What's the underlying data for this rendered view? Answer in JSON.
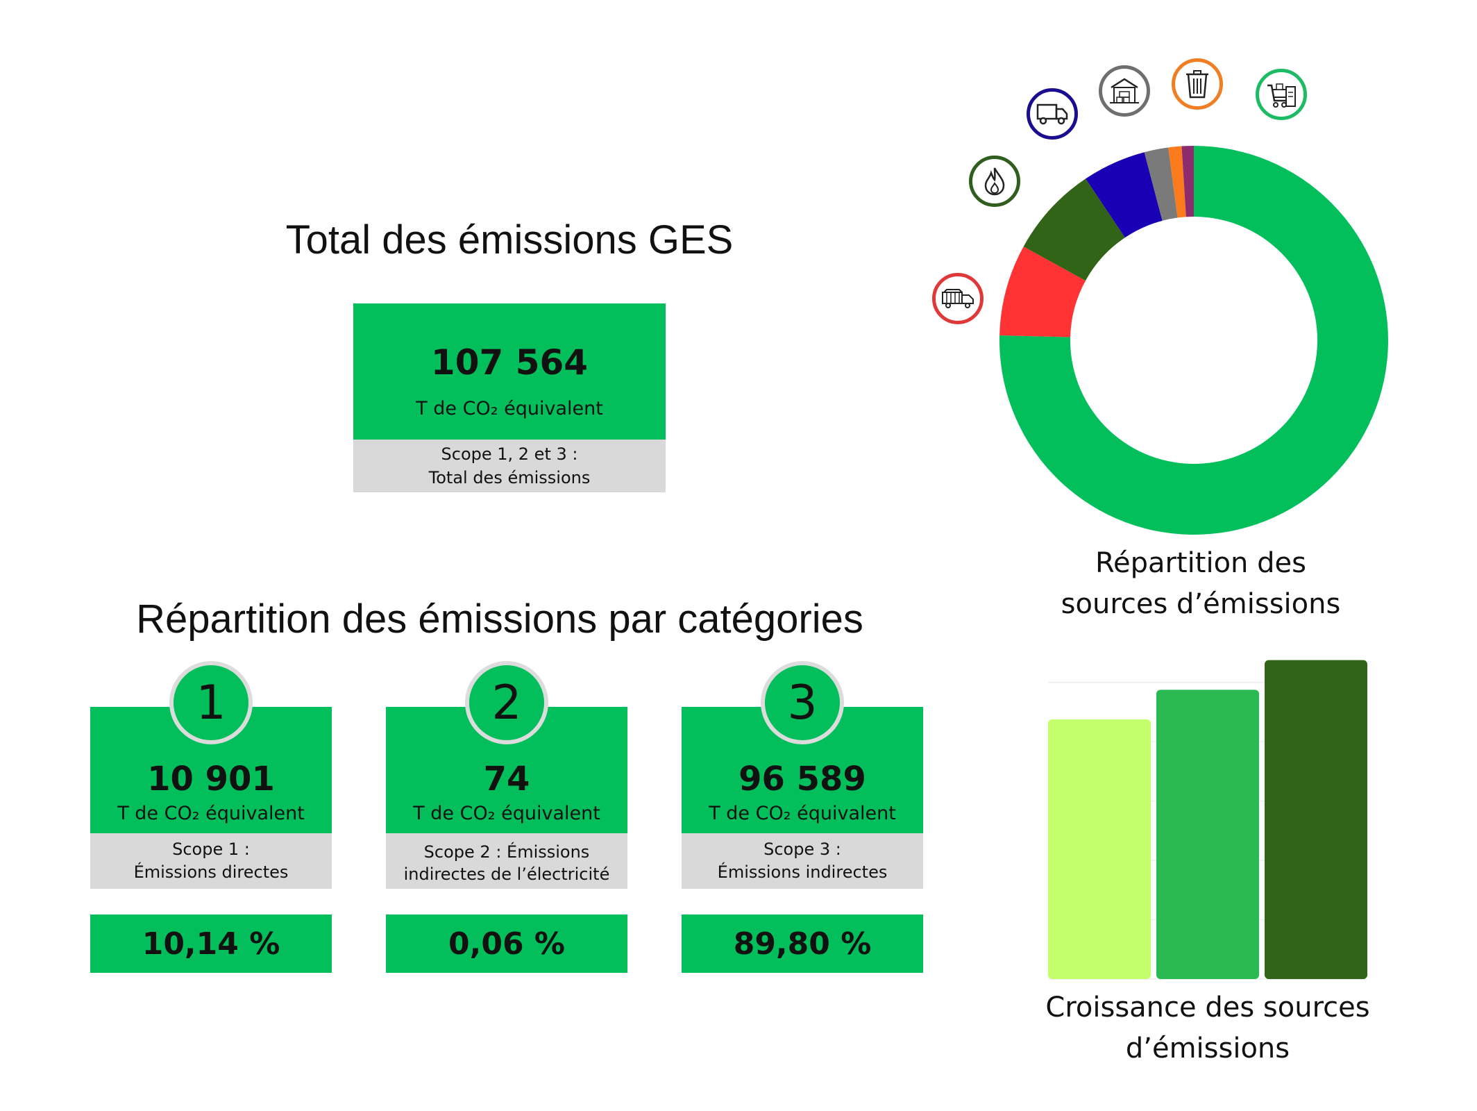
{
  "total_section": {
    "title": "Total des émissions GES",
    "value": "107 564",
    "unit": "T de CO₂ équivalent",
    "scope_line1": "Scope 1, 2 et 3 :",
    "scope_line2": "Total des émissions"
  },
  "categories_section": {
    "title": "Répartition des émissions par catégories",
    "cards": [
      {
        "badge": "1",
        "value": "10 901",
        "unit": "T de CO₂ équivalent",
        "scope_line1": "Scope 1 :",
        "scope_line2": "Émissions directes",
        "percent": "10,14 %"
      },
      {
        "badge": "2",
        "value": "74",
        "unit": "T de CO₂ équivalent",
        "scope_line1": "Scope 2 : Émissions",
        "scope_line2": "indirectes de l’électricité",
        "percent": "0,06 %"
      },
      {
        "badge": "3",
        "value": "96 589",
        "unit": "T de CO₂ équivalent",
        "scope_line1": "Scope 3 :",
        "scope_line2": "Émissions indirectes",
        "percent": "89,80 %"
      }
    ]
  },
  "colors": {
    "green": "#02bf5b",
    "grey_box": "#d9d9d9",
    "badge_border": "#dcdcdc"
  },
  "icons": [
    "truck-load-icon",
    "flame-icon",
    "delivery-truck-icon",
    "warehouse-icon",
    "trash-bin-icon",
    "shopping-supplies-icon"
  ],
  "chart_data": [
    {
      "type": "pie",
      "variant": "donut",
      "caption_line1": "Répartition des",
      "caption_line2": "sources d’émissions",
      "start": "top",
      "direction": "clockwise",
      "slices": [
        {
          "value": 75.4,
          "color": "#02bf5b",
          "icon": "shopping-supplies-icon"
        },
        {
          "value": 7.6,
          "color": "#ff3333",
          "icon": "truck-load-icon"
        },
        {
          "value": 7.6,
          "color": "#316417",
          "icon": "flame-icon"
        },
        {
          "value": 5.3,
          "color": "#1a00b4",
          "icon": "delivery-truck-icon"
        },
        {
          "value": 2.0,
          "color": "#7a7a7a",
          "icon": "warehouse-icon"
        },
        {
          "value": 1.1,
          "color": "#fb7b1c",
          "icon": "trash-bin-icon"
        },
        {
          "value": 1.0,
          "color": "#8c2c6d",
          "icon": ""
        }
      ]
    },
    {
      "type": "bar",
      "caption_line1": "Croissance des sources",
      "caption_line2": "d’émissions",
      "values": [
        87.5,
        97.5,
        107.5
      ],
      "colors": [
        "#c2ff6b",
        "#2ab953",
        "#316417"
      ],
      "ylim": [
        0,
        110
      ],
      "grid": true
    }
  ]
}
